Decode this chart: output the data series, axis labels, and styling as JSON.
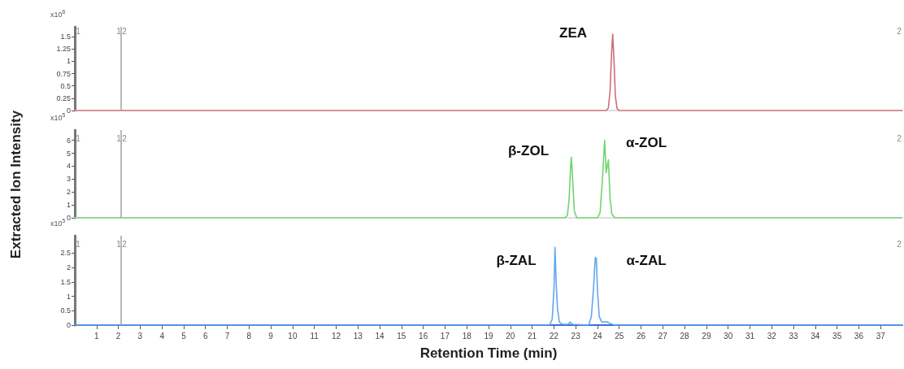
{
  "chart_data": [
    {
      "type": "line",
      "x": [
        0,
        24.4,
        24.5,
        24.58,
        24.64,
        24.7,
        24.76,
        24.82,
        24.9,
        25.0,
        38
      ],
      "series": [
        {
          "color": "#cc6f73",
          "values": [
            0,
            0,
            0.05,
            0.4,
            1.1,
            1.55,
            1.0,
            0.3,
            0.04,
            0,
            0
          ]
        }
      ],
      "xlim": [
        0,
        38
      ],
      "ylim": [
        0,
        1.7
      ],
      "yticks": [
        0,
        0.25,
        0.5,
        0.75,
        1,
        1.25,
        1.5
      ],
      "tick_labels": "y",
      "ref_lines": [
        {
          "axis": "x",
          "value": 2.1,
          "label": null,
          "color": "#a0a0a0"
        }
      ],
      "annotations": [
        "x10$^{6}$",
        "ZEA",
        "1",
        "1",
        "2",
        "2"
      ]
    },
    {
      "type": "line",
      "x": [
        0,
        22.5,
        22.62,
        22.7,
        22.76,
        22.8,
        22.86,
        22.94,
        23.05,
        24.0,
        24.12,
        24.22,
        24.33,
        24.4,
        24.5,
        24.58,
        24.66,
        24.8,
        38
      ],
      "series": [
        {
          "color": "#6fd46f",
          "values": [
            0,
            0,
            0.2,
            1.5,
            3.8,
            4.7,
            3.0,
            0.5,
            0,
            0,
            0.4,
            2.8,
            6.0,
            3.5,
            4.5,
            1.5,
            0.3,
            0,
            0
          ]
        }
      ],
      "xlim": [
        0,
        38
      ],
      "ylim": [
        0,
        6.8
      ],
      "yticks": [
        0,
        1,
        2,
        3,
        4,
        5,
        6
      ],
      "tick_labels": "y",
      "ylabel": "Extracted Ion Intensity",
      "ref_lines": [
        {
          "axis": "x",
          "value": 2.1,
          "label": null,
          "color": "#a0a0a0"
        }
      ],
      "annotations": [
        "x10$^{5}$",
        "β-ZOL",
        "α-ZOL",
        "1",
        "1",
        "2",
        "2"
      ]
    },
    {
      "type": "line",
      "x": [
        0,
        21.8,
        21.92,
        22.0,
        22.05,
        22.1,
        22.16,
        22.25,
        22.4,
        22.65,
        22.75,
        22.85,
        23.6,
        23.72,
        23.82,
        23.9,
        23.95,
        24.0,
        24.08,
        24.2,
        24.4,
        24.6,
        24.8,
        38
      ],
      "series": [
        {
          "color": "#62a8ea",
          "values": [
            0,
            0,
            0.2,
            1.2,
            2.7,
            1.5,
            0.6,
            0.1,
            0.03,
            0.03,
            0.1,
            0.03,
            0,
            0.3,
            1.3,
            2.35,
            2.3,
            1.2,
            0.3,
            0.1,
            0.12,
            0.05,
            0,
            0
          ]
        }
      ],
      "xlim": [
        0,
        38
      ],
      "ylim": [
        0,
        3.1
      ],
      "yticks": [
        0,
        0.5,
        1,
        1.5,
        2,
        2.5
      ],
      "xticks": [
        1,
        2,
        3,
        4,
        5,
        6,
        7,
        8,
        9,
        10,
        11,
        12,
        13,
        14,
        15,
        16,
        17,
        18,
        19,
        20,
        21,
        22,
        23,
        24,
        25,
        26,
        27,
        28,
        29,
        30,
        31,
        32,
        33,
        34,
        35,
        36,
        37
      ],
      "xlabel": "Retention Time (min)",
      "ref_lines": [
        {
          "axis": "x",
          "value": 2.1,
          "label": null,
          "color": "#a0a0a0"
        }
      ],
      "annotations": [
        "x10$^{5}$",
        "β-ZAL",
        "α-ZAL",
        "1",
        "1",
        "2",
        "2"
      ]
    }
  ]
}
